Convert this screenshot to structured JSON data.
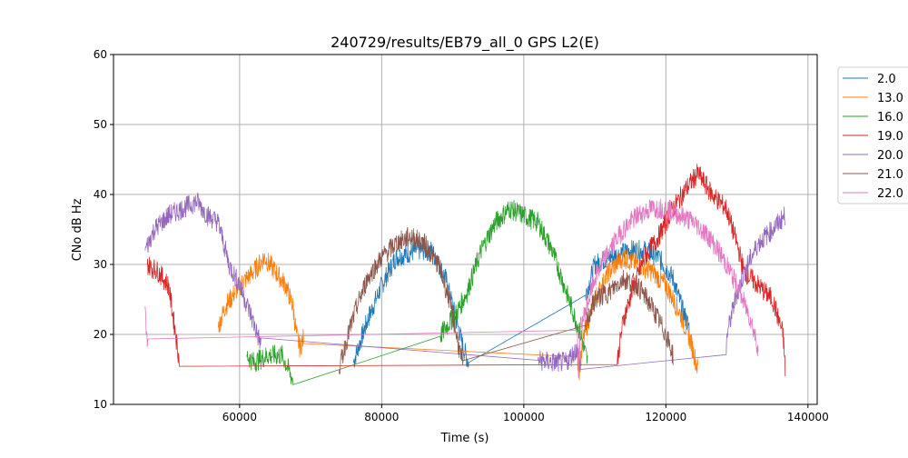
{
  "chart_data": {
    "type": "line",
    "title": "240729/results/EB79_all_0 GPS L2(E)",
    "xlabel": "Time (s)",
    "ylabel": "CNo dB Hz",
    "xlim": [
      42250,
      141300
    ],
    "ylim": [
      10,
      60
    ],
    "xticks": [
      60000,
      80000,
      100000,
      120000,
      140000
    ],
    "yticks": [
      10,
      20,
      30,
      40,
      50,
      60
    ],
    "grid": true,
    "legend_placement": "outside-right-top",
    "series": [
      {
        "name": "2.0",
        "color": "#1f77b4",
        "points": [
          [
            76000,
            16
          ],
          [
            78000,
            22
          ],
          [
            80000,
            27
          ],
          [
            82000,
            31
          ],
          [
            85000,
            32
          ],
          [
            87000,
            32
          ],
          [
            89000,
            28
          ],
          [
            90500,
            22
          ],
          [
            91500,
            18
          ],
          [
            92300,
            15.8
          ],
          [
            108700,
            25.6
          ],
          [
            110000,
            30
          ],
          [
            112000,
            31
          ],
          [
            115000,
            32
          ],
          [
            117000,
            32
          ],
          [
            119000,
            31
          ],
          [
            121000,
            28
          ],
          [
            122500,
            23
          ],
          [
            123300,
            21
          ]
        ]
      },
      {
        "name": "13.0",
        "color": "#ff7f0e",
        "points": [
          [
            57000,
            21
          ],
          [
            58000,
            24
          ],
          [
            60000,
            27
          ],
          [
            62000,
            29
          ],
          [
            63500,
            31
          ],
          [
            65000,
            29
          ],
          [
            66500,
            27
          ],
          [
            67500,
            24
          ],
          [
            68000,
            20
          ],
          [
            68500,
            18
          ],
          [
            69000,
            19.5
          ],
          [
            107500,
            16.8
          ],
          [
            107800,
            15
          ],
          [
            108500,
            20
          ],
          [
            110000,
            25
          ],
          [
            112000,
            29
          ],
          [
            114000,
            31
          ],
          [
            116000,
            30
          ],
          [
            118000,
            29
          ],
          [
            120000,
            27
          ],
          [
            122000,
            23
          ],
          [
            123500,
            19
          ],
          [
            124500,
            15
          ]
        ]
      },
      {
        "name": "16.0",
        "color": "#2ca02c",
        "points": [
          [
            61000,
            17
          ],
          [
            62000,
            16
          ],
          [
            64000,
            17
          ],
          [
            66000,
            17
          ],
          [
            67500,
            13.5
          ],
          [
            88200,
            19.7
          ],
          [
            89000,
            21
          ],
          [
            90500,
            23
          ],
          [
            92000,
            26
          ],
          [
            94000,
            32
          ],
          [
            96000,
            36
          ],
          [
            98000,
            38
          ],
          [
            100000,
            37
          ],
          [
            102000,
            36
          ],
          [
            104000,
            32
          ],
          [
            106000,
            26
          ],
          [
            108000,
            20
          ],
          [
            109000,
            16
          ]
        ]
      },
      {
        "name": "19.0",
        "color": "#d62728",
        "points": [
          [
            47000,
            30
          ],
          [
            48500,
            29
          ],
          [
            50000,
            27
          ],
          [
            51000,
            20
          ],
          [
            51500,
            16.3
          ],
          [
            113100,
            15.7
          ],
          [
            114000,
            22
          ],
          [
            115500,
            27
          ],
          [
            117000,
            31
          ],
          [
            119000,
            34
          ],
          [
            121000,
            38
          ],
          [
            123000,
            41
          ],
          [
            124500,
            43
          ],
          [
            126500,
            40
          ],
          [
            128500,
            38
          ],
          [
            130000,
            33
          ],
          [
            131000,
            29
          ],
          [
            133000,
            27
          ],
          [
            135000,
            25
          ],
          [
            136500,
            20
          ],
          [
            136800,
            15
          ]
        ]
      },
      {
        "name": "20.0",
        "color": "#9467bd",
        "points": [
          [
            46700,
            32
          ],
          [
            48000,
            35
          ],
          [
            50000,
            37
          ],
          [
            52000,
            38
          ],
          [
            54000,
            39
          ],
          [
            55500,
            37
          ],
          [
            57000,
            36
          ],
          [
            58500,
            30
          ],
          [
            60000,
            27
          ],
          [
            61500,
            23
          ],
          [
            63000,
            18.5
          ],
          [
            102000,
            16.3
          ],
          [
            104000,
            16
          ],
          [
            106000,
            16
          ],
          [
            107500,
            18
          ],
          [
            108000,
            15
          ],
          [
            128500,
            17.1
          ],
          [
            128600,
            20
          ],
          [
            130000,
            26
          ],
          [
            131500,
            30
          ],
          [
            133000,
            33
          ],
          [
            135000,
            35
          ],
          [
            136800,
            37
          ]
        ]
      },
      {
        "name": "21.0",
        "color": "#8c564b",
        "points": [
          [
            74000,
            15
          ],
          [
            75000,
            19
          ],
          [
            76500,
            24
          ],
          [
            78000,
            28
          ],
          [
            80000,
            31
          ],
          [
            82000,
            33
          ],
          [
            84000,
            34
          ],
          [
            86000,
            33
          ],
          [
            88000,
            30
          ],
          [
            89500,
            25
          ],
          [
            90500,
            20
          ],
          [
            91500,
            15
          ],
          [
            108700,
            21.3
          ],
          [
            110000,
            25
          ],
          [
            112000,
            26
          ],
          [
            114000,
            28
          ],
          [
            116000,
            27
          ],
          [
            118000,
            24
          ],
          [
            120000,
            20
          ],
          [
            121000,
            17
          ]
        ]
      },
      {
        "name": "22.0",
        "color": "#e377c2",
        "points": [
          [
            46700,
            24
          ],
          [
            47000,
            18
          ],
          [
            47100,
            20.6
          ],
          [
            107500,
            20.6
          ],
          [
            107700,
            15
          ],
          [
            108000,
            21
          ],
          [
            110000,
            28
          ],
          [
            112000,
            32
          ],
          [
            114000,
            35
          ],
          [
            116000,
            37
          ],
          [
            118000,
            38
          ],
          [
            120000,
            38
          ],
          [
            122000,
            37
          ],
          [
            124000,
            36
          ],
          [
            126000,
            34
          ],
          [
            128000,
            31
          ],
          [
            130000,
            27
          ],
          [
            132000,
            22
          ],
          [
            133000,
            18
          ]
        ]
      }
    ]
  }
}
